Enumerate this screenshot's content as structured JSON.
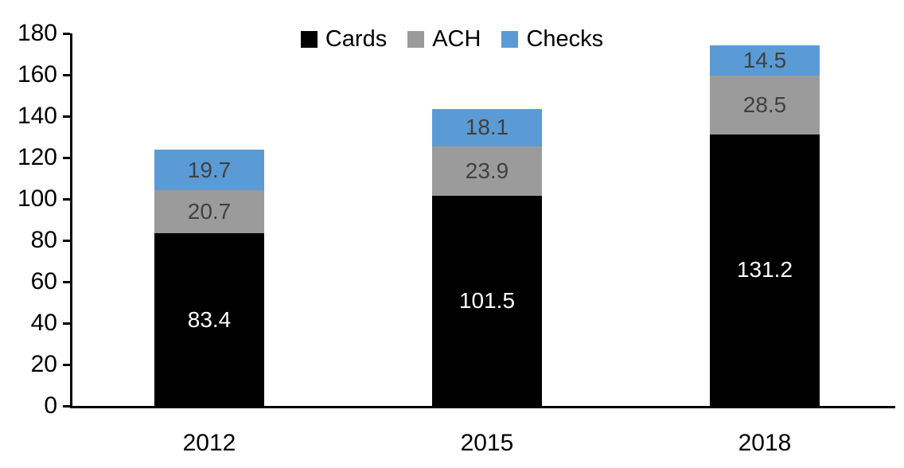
{
  "chart_data": {
    "type": "bar",
    "stacked": true,
    "title": "",
    "categories": [
      "2012",
      "2015",
      "2018"
    ],
    "series": [
      {
        "name": "Cards",
        "color": "#000000",
        "label_color": "#ffffff",
        "values": [
          83.4,
          101.5,
          131.2
        ]
      },
      {
        "name": "ACH",
        "color": "#9b9b9b",
        "label_color": "#404040",
        "values": [
          20.7,
          23.9,
          28.5
        ]
      },
      {
        "name": "Checks",
        "color": "#5b9bd5",
        "label_color": "#404040",
        "values": [
          19.7,
          18.1,
          14.5
        ]
      }
    ],
    "totals": [
      123.8,
      143.5,
      174.2
    ],
    "ylim": [
      0,
      180
    ],
    "yticks": [
      0,
      20,
      40,
      60,
      80,
      100,
      120,
      140,
      160,
      180
    ],
    "grid": false,
    "legend_position": "top-center",
    "axis_color": "#000000",
    "background_color": "#ffffff"
  }
}
